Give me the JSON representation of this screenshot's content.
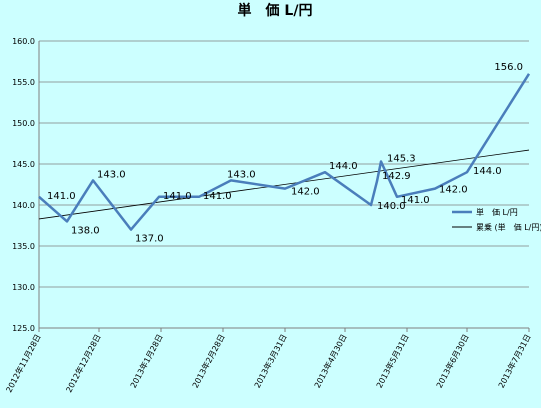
{
  "chart_data": {
    "type": "line",
    "title": "単　価  L/円",
    "ylim": [
      125.0,
      160.0
    ],
    "yticks": [
      "125.0",
      "130.0",
      "135.0",
      "140.0",
      "145.0",
      "150.0",
      "155.0",
      "160.0"
    ],
    "ytick_values": [
      125,
      130,
      135,
      140,
      145,
      150,
      155,
      160
    ],
    "xlim": [
      "2012-11-28",
      "2013-07-31"
    ],
    "xtick_labels": [
      "2012年11月28日",
      "2012年12月28日",
      "2013年1月28日",
      "2013年2月28日",
      "2013年3月31日",
      "2013年4月30日",
      "2013年5月31日",
      "2013年6月30日",
      "2013年7月31日"
    ],
    "xtick_dates": [
      "2012-11-28",
      "2012-12-28",
      "2013-01-28",
      "2013-02-28",
      "2013-03-31",
      "2013-04-30",
      "2013-05-31",
      "2013-06-30",
      "2013-07-31"
    ],
    "series": [
      {
        "name": "単　価  L/円",
        "color": "#4a7ebb",
        "points": [
          {
            "x": "2012-11-28",
            "y": 141.0,
            "label": "141.0"
          },
          {
            "x": "2012-12-12",
            "y": 138.0,
            "label": "138.0"
          },
          {
            "x": "2012-12-25",
            "y": 143.0,
            "label": "143.0"
          },
          {
            "x": "2013-01-13",
            "y": 137.0,
            "label": "137.0"
          },
          {
            "x": "2013-01-27",
            "y": 141.0,
            "label": "141.0"
          },
          {
            "x": "2013-02-16",
            "y": 141.0,
            "label": "141.0"
          },
          {
            "x": "2013-03-04",
            "y": 143.0,
            "label": "143.0"
          },
          {
            "x": "2013-03-31",
            "y": 142.0,
            "label": "142.0"
          },
          {
            "x": "2013-04-20",
            "y": 144.0,
            "label": "144.0"
          },
          {
            "x": "2013-05-13",
            "y": 140.0,
            "label": "140.0"
          },
          {
            "x": "2013-05-16",
            "y": 142.9,
            "label": "142.9"
          },
          {
            "x": "2013-05-18",
            "y": 145.3,
            "label": "145.3"
          },
          {
            "x": "2013-05-26",
            "y": 141.0,
            "label": "141.0"
          },
          {
            "x": "2013-06-14",
            "y": 142.0,
            "label": "142.0"
          },
          {
            "x": "2013-06-30",
            "y": 144.0,
            "label": "144.0"
          },
          {
            "x": "2013-07-31",
            "y": 156.0,
            "label": "156.0"
          }
        ]
      },
      {
        "name": "累乗 (単　価  L/円)",
        "type": "trendline",
        "color": "#000000",
        "points": [
          {
            "x": "2012-11-28",
            "y": 138.3
          },
          {
            "x": "2013-07-31",
            "y": 146.7
          }
        ]
      }
    ],
    "grid": "horizontal",
    "legend_position": "right"
  }
}
